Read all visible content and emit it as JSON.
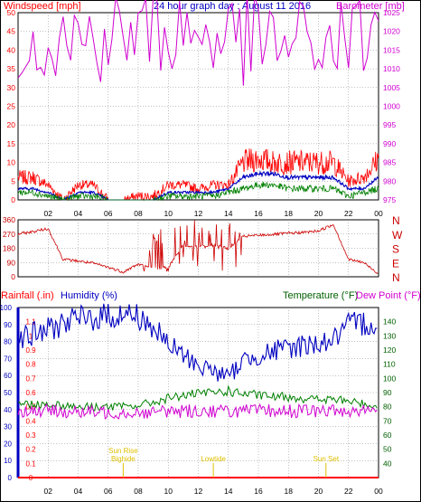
{
  "title": "24 hour graph day : August 11 2016",
  "x_ticks": [
    "02",
    "04",
    "06",
    "08",
    "10",
    "12",
    "14",
    "16",
    "18",
    "20",
    "22",
    "00"
  ],
  "chart_data": [
    {
      "type": "line",
      "panel": "wind-baro",
      "ylabel_left": "Windspeed [mph]",
      "ylabel_right": "Barometer [mb]",
      "ylim_left": [
        0,
        50
      ],
      "ylim_right": [
        975,
        1025
      ],
      "yticks_left": [
        "0",
        "5",
        "10",
        "15",
        "20",
        "25",
        "30",
        "35",
        "40",
        "45",
        "50"
      ],
      "yticks_right": [
        "975",
        "980",
        "985",
        "990",
        "995",
        "1000",
        "1005",
        "1010",
        "1015",
        "1020",
        "1025"
      ],
      "x": [
        0,
        1,
        2,
        3,
        4,
        5,
        6,
        7,
        8,
        9,
        10,
        11,
        12,
        13,
        14,
        15,
        16,
        17,
        18,
        19,
        20,
        21,
        22,
        23,
        24
      ],
      "series": [
        {
          "name": "Gust",
          "axis": "left",
          "color": "#ff0000",
          "values": [
            6,
            6,
            4,
            0,
            4,
            4,
            0,
            0,
            1,
            1,
            4,
            4,
            3,
            4,
            4,
            10,
            11,
            10,
            10,
            10,
            10,
            10,
            5,
            6,
            11
          ]
        },
        {
          "name": "Average",
          "axis": "left",
          "color": "#0000c0",
          "values": [
            3,
            3,
            2,
            0,
            2,
            2,
            0,
            0,
            0,
            0,
            2,
            2,
            2,
            2,
            3,
            6,
            7,
            7,
            6,
            6,
            6,
            6,
            3,
            3,
            6
          ]
        },
        {
          "name": "Wind",
          "axis": "left",
          "color": "#008000",
          "values": [
            2,
            2,
            1,
            0,
            1,
            1,
            0,
            0,
            0,
            0,
            1,
            1,
            1,
            1,
            2,
            3,
            4,
            4,
            3,
            3,
            3,
            3,
            1,
            2,
            3
          ]
        },
        {
          "name": "Barometer",
          "axis": "right",
          "color": "#d000d0",
          "values": [
            1019.7,
            1019.1,
            1018.4,
            1018.0,
            1018.0,
            1018.2,
            1018.6,
            1019.0,
            1019.4,
            1019.8,
            1019.9,
            1019.8,
            1019.5,
            1019.0,
            1018.6,
            1017.8,
            1017.0,
            1016.7,
            1016.7,
            1016.5,
            1016.5,
            1017.2,
            1017.9,
            1018.3,
            1018.6
          ]
        }
      ]
    },
    {
      "type": "line",
      "panel": "wind-direction",
      "ylim": [
        0,
        360
      ],
      "yticks_left": [
        "0",
        "90",
        "180",
        "270",
        "360"
      ],
      "yticks_right": [
        "N",
        "E",
        "S",
        "W",
        "N"
      ],
      "x": [
        0,
        1,
        2,
        3,
        4,
        5,
        6,
        7,
        8,
        9,
        10,
        11,
        12,
        13,
        14,
        15,
        16,
        17,
        18,
        19,
        20,
        21,
        22,
        23,
        24
      ],
      "series": [
        {
          "name": "Direction",
          "color": "#cc0000",
          "values": [
            270,
            285,
            305,
            110,
            100,
            85,
            60,
            30,
            80,
            50,
            60,
            200,
            190,
            200,
            180,
            255,
            262,
            268,
            275,
            280,
            290,
            330,
            110,
            90,
            20
          ]
        }
      ]
    },
    {
      "type": "line",
      "panel": "rain-humidity-temp",
      "ylabel_rain": "Rainfall (.in)",
      "ylabel_humidity": "Humidity (%)",
      "ylabel_temperature": "Temperature (°F)",
      "ylabel_dewpoint": "Dew Point (°F)",
      "ylim_humidity": [
        0,
        100
      ],
      "ylim_rain": [
        0,
        1.2
      ],
      "ylim_temperature": [
        30,
        150
      ],
      "yticks_humidity": [
        "0",
        "10",
        "20",
        "30",
        "40",
        "50",
        "60",
        "70",
        "80",
        "90",
        "100"
      ],
      "yticks_rain": [
        "0",
        "0.1",
        "0.2",
        "0.3",
        "0.4",
        "0.5",
        "0.6",
        "0.7",
        "0.8",
        "0.9",
        "1",
        "1.1"
      ],
      "yticks_temperature": [
        "40",
        "50",
        "60",
        "70",
        "80",
        "90",
        "100",
        "110",
        "120",
        "130",
        "140"
      ],
      "x": [
        0,
        1,
        2,
        3,
        4,
        5,
        6,
        7,
        8,
        9,
        10,
        11,
        12,
        13,
        14,
        15,
        16,
        17,
        18,
        19,
        20,
        21,
        22,
        23,
        24
      ],
      "series": [
        {
          "name": "Humidity",
          "color": "#0000c0",
          "values": [
            83,
            84,
            87,
            91,
            93,
            94,
            95,
            96,
            95,
            88,
            78,
            72,
            66,
            63,
            59,
            69,
            72,
            74,
            76,
            78,
            79,
            81,
            89,
            91,
            90
          ]
        },
        {
          "name": "Temperature",
          "color": "#008000",
          "values": [
            82,
            82,
            82,
            81,
            80,
            80,
            80,
            80,
            81,
            83,
            86,
            88,
            89,
            90,
            91,
            89,
            88,
            87,
            87,
            86,
            85,
            85,
            84,
            82,
            80
          ]
        },
        {
          "name": "Dew Point",
          "color": "#d000d0",
          "values": [
            77,
            77,
            77,
            77,
            76,
            76,
            76,
            76,
            76,
            76,
            77,
            77,
            77,
            77,
            77,
            77,
            77,
            77,
            77,
            77,
            77,
            77,
            77,
            78,
            77
          ]
        },
        {
          "name": "Rainfall",
          "color": "#ff0000",
          "values": [
            0,
            0,
            0,
            0,
            0,
            0,
            0,
            0,
            0,
            0,
            0,
            0,
            0,
            0,
            0,
            0,
            0,
            0,
            0,
            0,
            0,
            0,
            0,
            0,
            0
          ]
        }
      ],
      "annotations": [
        {
          "hour": 7.0,
          "lines": [
            "Sun Rise",
            "Bighide"
          ]
        },
        {
          "hour": 13.0,
          "lines": [
            "Lowtide"
          ]
        },
        {
          "hour": 20.5,
          "lines": [
            "Sun Set"
          ]
        }
      ]
    }
  ],
  "colors": {
    "frame": "#000000",
    "grid": "#808080",
    "wind_axis": "#ff0000",
    "baro_axis": "#d000d0",
    "title": "#0000c0",
    "direction_axis": "#cc0000",
    "humidity_axis": "#0000c0",
    "temp_axis": "#006000",
    "annotation": "#e0c000"
  }
}
